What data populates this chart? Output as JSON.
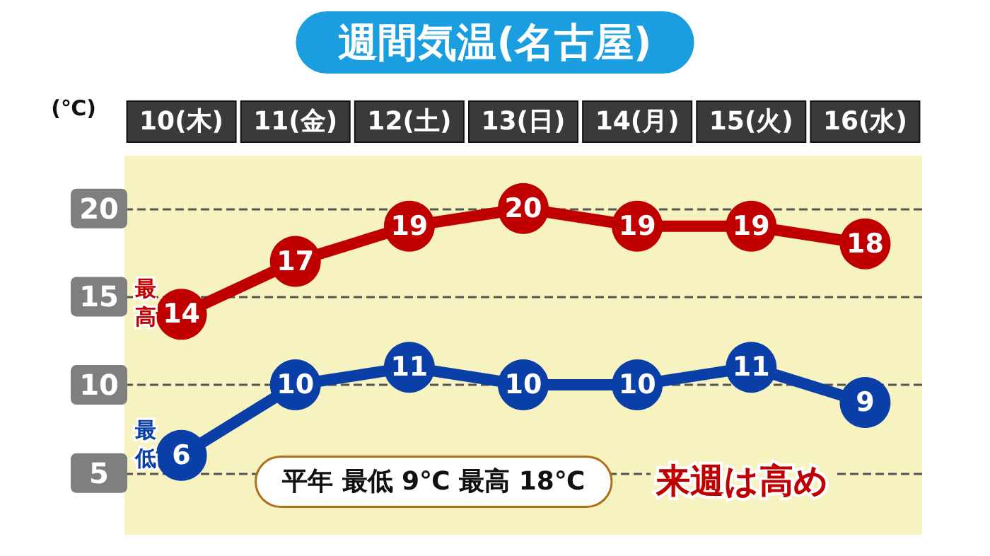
{
  "chart_data": {
    "type": "line",
    "title": "週間気温(名古屋)",
    "ylabel": "(℃)",
    "categories": [
      "10(木)",
      "11(金)",
      "12(土)",
      "13(日)",
      "14(月)",
      "15(火)",
      "16(水)"
    ],
    "series": [
      {
        "name": "最高",
        "color": "#c00000",
        "values": [
          14,
          17,
          19,
          20,
          19,
          19,
          18
        ]
      },
      {
        "name": "最低",
        "color": "#0a3fa8",
        "values": [
          6,
          10,
          11,
          10,
          10,
          11,
          9
        ]
      }
    ],
    "ylim": [
      1.5,
      23
    ],
    "yticks": [
      5,
      10,
      15,
      20
    ],
    "grid": "y",
    "legend": false,
    "marker": "circle",
    "line_style": "solid",
    "data_labels": true,
    "annotations": [
      "平年 最低 9℃ 最高 18℃",
      "来週は高め"
    ]
  }
}
